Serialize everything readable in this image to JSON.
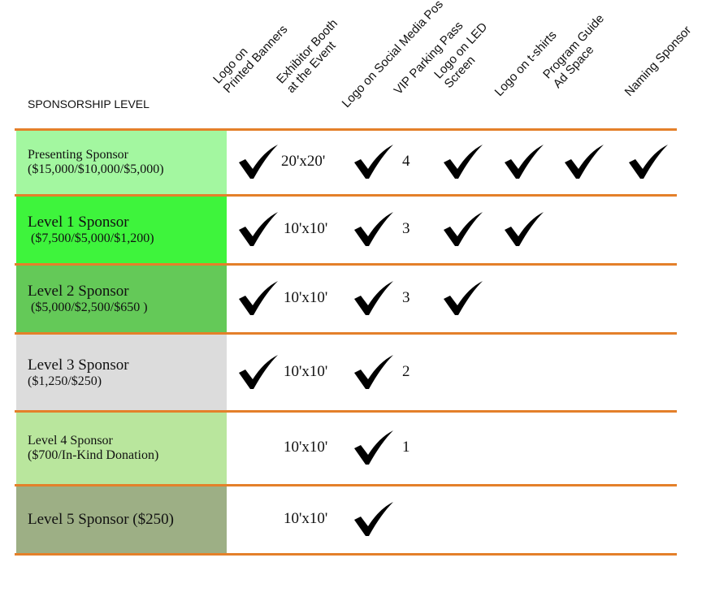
{
  "header": {
    "level_label": "SPONSORSHIP LEVEL",
    "columns": [
      "Logo on\nPrinted Banners",
      "Exhibitor Booth\nat the Event",
      "Logo on Social Media Pos",
      "VIP Parking Pass",
      "Logo on LED\nScreen",
      "Logo on t-shirts",
      "Program Guide\nAd Space",
      "Naming Sponsor"
    ]
  },
  "colors": {
    "divider": "#e4802a",
    "check": "#000000"
  },
  "rows": [
    {
      "name": "Presenting Sponsor",
      "price": "($15,000/$10,000/$5,000)",
      "color": "#a3f7a0",
      "banners": true,
      "booth": "20'x20'",
      "social": true,
      "vip": "4",
      "led": true,
      "tshirts": true,
      "program": true,
      "naming": true
    },
    {
      "name": "Level 1 Sponsor",
      "price": " ($7,500/$5,000/$1,200)",
      "color": "#3ef43c",
      "banners": true,
      "booth": "10'x10'",
      "social": true,
      "vip": "3",
      "led": true,
      "tshirts": true,
      "program": false,
      "naming": false
    },
    {
      "name": "Level 2 Sponsor",
      "price": " ($5,000/$2,500/$650 )",
      "color": "#64c958",
      "banners": true,
      "booth": "10'x10'",
      "social": true,
      "vip": "3",
      "led": true,
      "tshirts": false,
      "program": false,
      "naming": false
    },
    {
      "name": "Level 3 Sponsor",
      "price": "($1,250/$250)",
      "color": "#dcdcdc",
      "banners": true,
      "booth": "10'x10'",
      "social": true,
      "vip": "2",
      "led": false,
      "tshirts": false,
      "program": false,
      "naming": false
    },
    {
      "name": "Level 4 Sponsor",
      "price": "($700/In-Kind Donation)",
      "color": "#b9e69d",
      "banners": false,
      "booth": "10'x10'",
      "social": true,
      "vip": "1",
      "led": false,
      "tshirts": false,
      "program": false,
      "naming": false
    },
    {
      "name": "Level 5 Sponsor ($250)",
      "price": "",
      "color": "#9daf85",
      "banners": false,
      "booth": "10'x10'",
      "social": true,
      "vip": "",
      "led": false,
      "tshirts": false,
      "program": false,
      "naming": false
    }
  ]
}
